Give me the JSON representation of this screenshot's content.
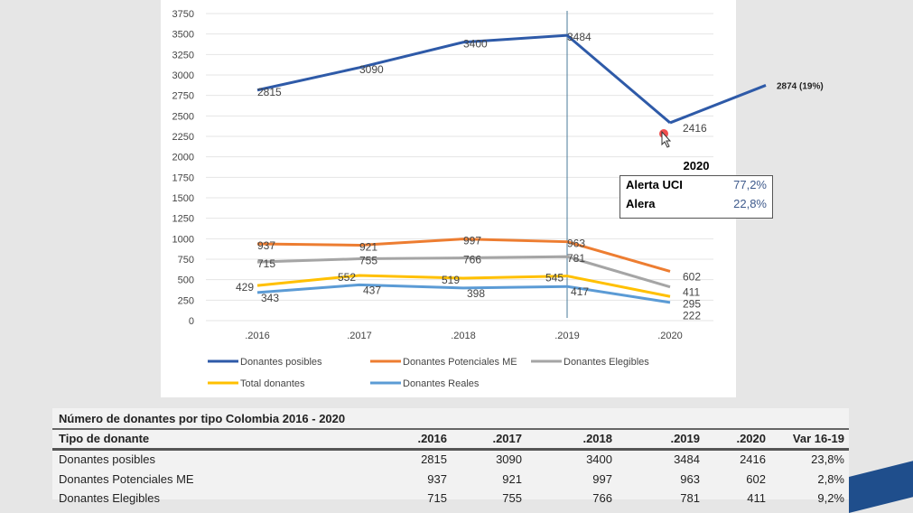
{
  "chart_data": {
    "type": "line",
    "categories": [
      ".2016",
      ".2017",
      ".2018",
      ".2019",
      ".2020"
    ],
    "ylim": [
      0,
      3750
    ],
    "yticks": [
      0,
      250,
      500,
      750,
      1000,
      1250,
      1500,
      1750,
      2000,
      2250,
      2500,
      2750,
      3000,
      3250,
      3500,
      3750
    ],
    "grid": true,
    "legend": "bottom",
    "series": [
      {
        "name": "Donantes posibles",
        "color": "#2e5aa8",
        "values": [
          2815,
          3090,
          3400,
          3484,
          2416
        ]
      },
      {
        "name": "Donantes Potenciales ME",
        "color": "#ed7d31",
        "values": [
          937,
          921,
          997,
          963,
          602
        ]
      },
      {
        "name": "Donantes Elegibles",
        "color": "#a5a5a5",
        "values": [
          715,
          755,
          766,
          781,
          411
        ]
      },
      {
        "name": "Total donantes",
        "color": "#ffc000",
        "values": [
          429,
          552,
          519,
          545,
          295
        ]
      },
      {
        "name": "Donantes Reales",
        "color": "#5b9bd5",
        "values": [
          343,
          437,
          398,
          417,
          222
        ]
      }
    ],
    "annotations": {
      "projection_label": "2874 (19%)",
      "projection_value": 2874,
      "marker_year": ".2019"
    }
  },
  "inset": {
    "title": "2020",
    "rows": [
      {
        "label": "Alerta  UCI",
        "value": "77,2%"
      },
      {
        "label": "Alera",
        "value": "22,8%"
      }
    ]
  },
  "table": {
    "title": "Número de donantes por tipo Colombia 2016 - 2020",
    "headers": [
      "Tipo de donante",
      ".2016",
      ".2017",
      ".2018",
      ".2019",
      ".2020",
      "Var 16-19"
    ],
    "rows": [
      [
        "Donantes posibles",
        "2815",
        "3090",
        "3400",
        "3484",
        "2416",
        "23,8%"
      ],
      [
        "Donantes Potenciales ME",
        "937",
        "921",
        "997",
        "963",
        "602",
        "2,8%"
      ],
      [
        "Donantes Elegibles",
        "715",
        "755",
        "766",
        "781",
        "411",
        "9,2%"
      ]
    ]
  }
}
